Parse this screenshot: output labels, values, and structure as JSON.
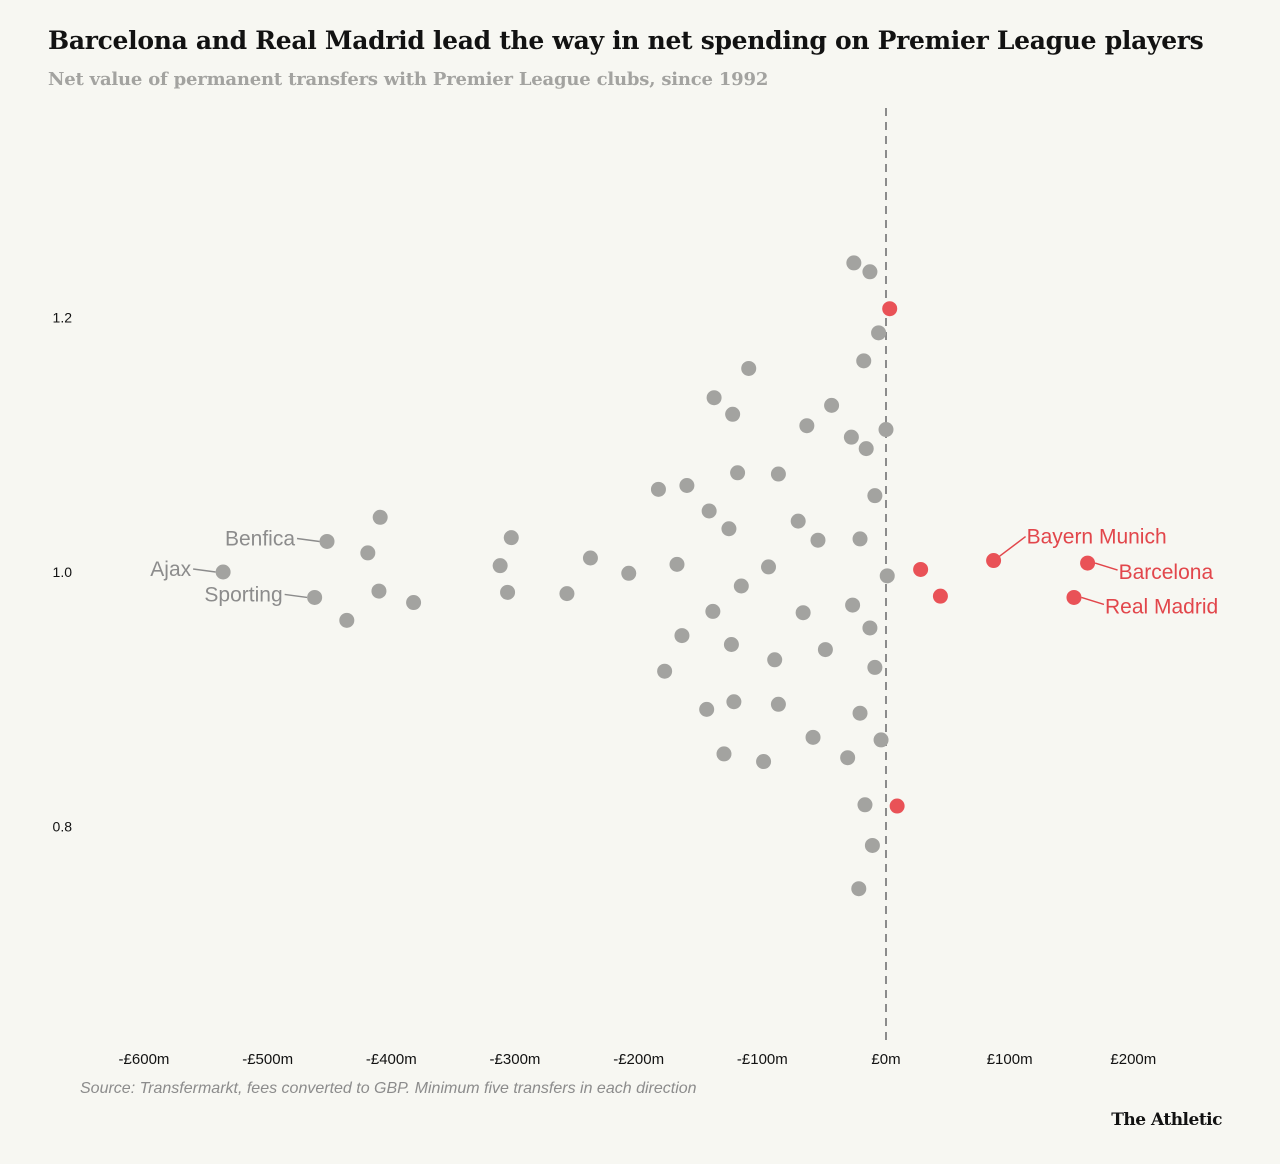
{
  "header": {
    "title": "Barcelona and Real Madrid lead the way in net spending on Premier League players",
    "subtitle": "Net value of permanent transfers with Premier League clubs, since 1992"
  },
  "footer": {
    "source": "Source: Transfermarkt, fees converted to GBP. Minimum five transfers in each direction",
    "brand": "The Athletic"
  },
  "colors": {
    "background": "#f7f7f2",
    "neutral_dot": "#a3a3a0",
    "highlight_dot": "#e95257",
    "label_neutral": "#8c8c8c",
    "label_highlight": "#e2464b",
    "reference_line": "#8c8c8c"
  },
  "chart_data": {
    "type": "scatter",
    "x_tick_labels": [
      "-£600m",
      "-£500m",
      "-£400m",
      "-£300m",
      "-£200m",
      "-£100m",
      "£0m",
      "£100m",
      "£200m"
    ],
    "x_ticks": [
      -600,
      -500,
      -400,
      -300,
      -200,
      -100,
      0,
      100,
      200
    ],
    "y_tick_labels": [
      "1.2",
      "1.0",
      "0.8"
    ],
    "y_ticks": [
      1.2,
      1.0,
      0.8
    ],
    "xlim": [
      -610,
      215
    ],
    "ylim": [
      0.63,
      1.38
    ],
    "reference_line_x": 0,
    "grid": false,
    "points": [
      {
        "x": -536,
        "y": 1.0,
        "label": "Ajax",
        "label_side": "left",
        "highlight": false
      },
      {
        "x": -452,
        "y": 1.024,
        "label": "Benfica",
        "label_side": "left",
        "highlight": false
      },
      {
        "x": -462,
        "y": 0.98,
        "label": "Sporting",
        "label_side": "left",
        "highlight": false
      },
      {
        "x": 87,
        "y": 1.009,
        "label": "Bayern Munich",
        "label_side": "upper-right",
        "highlight": true
      },
      {
        "x": 163,
        "y": 1.007,
        "label": "Barcelona",
        "label_side": "right",
        "highlight": true
      },
      {
        "x": 152,
        "y": 0.98,
        "label": "Real Madrid",
        "label_side": "right",
        "highlight": true
      },
      {
        "x": 28,
        "y": 1.002,
        "highlight": true
      },
      {
        "x": 44,
        "y": 0.981,
        "highlight": true
      },
      {
        "x": 3,
        "y": 1.207,
        "highlight": true
      },
      {
        "x": 9,
        "y": 0.816,
        "highlight": true
      },
      {
        "x": -409,
        "y": 1.043,
        "highlight": false
      },
      {
        "x": -419,
        "y": 1.015,
        "highlight": false
      },
      {
        "x": -410,
        "y": 0.985,
        "highlight": false
      },
      {
        "x": -382,
        "y": 0.976,
        "highlight": false
      },
      {
        "x": -436,
        "y": 0.962,
        "highlight": false
      },
      {
        "x": -303,
        "y": 1.027,
        "highlight": false
      },
      {
        "x": -312,
        "y": 1.005,
        "highlight": false
      },
      {
        "x": -306,
        "y": 0.984,
        "highlight": false
      },
      {
        "x": -258,
        "y": 0.983,
        "highlight": false
      },
      {
        "x": -239,
        "y": 1.011,
        "highlight": false
      },
      {
        "x": -208,
        "y": 0.999,
        "highlight": false
      },
      {
        "x": -184,
        "y": 1.065,
        "highlight": false
      },
      {
        "x": -161,
        "y": 1.068,
        "highlight": false
      },
      {
        "x": -169,
        "y": 1.006,
        "highlight": false
      },
      {
        "x": -165,
        "y": 0.95,
        "highlight": false
      },
      {
        "x": -179,
        "y": 0.922,
        "highlight": false
      },
      {
        "x": -143,
        "y": 1.048,
        "highlight": false
      },
      {
        "x": -127,
        "y": 1.034,
        "highlight": false
      },
      {
        "x": -120,
        "y": 1.078,
        "highlight": false
      },
      {
        "x": -139,
        "y": 1.137,
        "highlight": false
      },
      {
        "x": -124,
        "y": 1.124,
        "highlight": false
      },
      {
        "x": -111,
        "y": 1.16,
        "highlight": false
      },
      {
        "x": -117,
        "y": 0.989,
        "highlight": false
      },
      {
        "x": -140,
        "y": 0.969,
        "highlight": false
      },
      {
        "x": -125,
        "y": 0.943,
        "highlight": false
      },
      {
        "x": -145,
        "y": 0.892,
        "highlight": false
      },
      {
        "x": -123,
        "y": 0.898,
        "highlight": false
      },
      {
        "x": -131,
        "y": 0.857,
        "highlight": false
      },
      {
        "x": -99,
        "y": 0.851,
        "highlight": false
      },
      {
        "x": -87,
        "y": 1.077,
        "highlight": false
      },
      {
        "x": -95,
        "y": 1.004,
        "highlight": false
      },
      {
        "x": -90,
        "y": 0.931,
        "highlight": false
      },
      {
        "x": -87,
        "y": 0.896,
        "highlight": false
      },
      {
        "x": -71,
        "y": 1.04,
        "highlight": false
      },
      {
        "x": -64,
        "y": 1.115,
        "highlight": false
      },
      {
        "x": -67,
        "y": 0.968,
        "highlight": false
      },
      {
        "x": -55,
        "y": 1.025,
        "highlight": false
      },
      {
        "x": -59,
        "y": 0.87,
        "highlight": false
      },
      {
        "x": -49,
        "y": 0.939,
        "highlight": false
      },
      {
        "x": -44,
        "y": 1.131,
        "highlight": false
      },
      {
        "x": -26,
        "y": 1.243,
        "highlight": false
      },
      {
        "x": -13,
        "y": 1.236,
        "highlight": false
      },
      {
        "x": -6,
        "y": 1.188,
        "highlight": false
      },
      {
        "x": -18,
        "y": 1.166,
        "highlight": false
      },
      {
        "x": -28,
        "y": 1.106,
        "highlight": false
      },
      {
        "x": -16,
        "y": 1.097,
        "highlight": false
      },
      {
        "x": 0,
        "y": 1.112,
        "highlight": false
      },
      {
        "x": -9,
        "y": 1.06,
        "highlight": false
      },
      {
        "x": -21,
        "y": 1.026,
        "highlight": false
      },
      {
        "x": 1,
        "y": 0.997,
        "highlight": false
      },
      {
        "x": -27,
        "y": 0.974,
        "highlight": false
      },
      {
        "x": -13,
        "y": 0.956,
        "highlight": false
      },
      {
        "x": -9,
        "y": 0.925,
        "highlight": false
      },
      {
        "x": -21,
        "y": 0.889,
        "highlight": false
      },
      {
        "x": -4,
        "y": 0.868,
        "highlight": false
      },
      {
        "x": -31,
        "y": 0.854,
        "highlight": false
      },
      {
        "x": -17,
        "y": 0.817,
        "highlight": false
      },
      {
        "x": -11,
        "y": 0.785,
        "highlight": false
      },
      {
        "x": -22,
        "y": 0.751,
        "highlight": false
      }
    ]
  }
}
